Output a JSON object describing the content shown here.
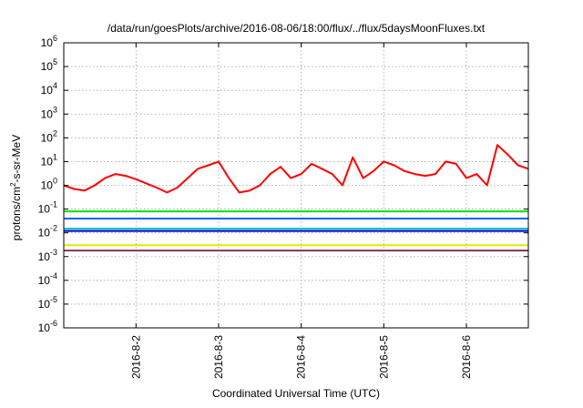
{
  "chart_data": {
    "type": "line",
    "title": "/data/run/goesPlots/archive/2016-08-06/18:00/flux/../flux/5daysMoonFluxes.txt",
    "xlabel": "Coordinated Universal Time (UTC)",
    "ylabel": "protons/cm²-s-sr-MeV",
    "ylabel_parts": {
      "pre": "protons/cm",
      "sup": "2",
      "post": "-s-sr-MeV"
    },
    "y_scale": "log",
    "ylim": [
      1e-06,
      1000000.0
    ],
    "xlim": [
      "2016-08-01T03:00",
      "2016-08-06T18:00"
    ],
    "grid": true,
    "yticks": [
      {
        "value": 1e-06,
        "base": "10",
        "exp": "-6"
      },
      {
        "value": 1e-05,
        "base": "10",
        "exp": "-5"
      },
      {
        "value": 0.0001,
        "base": "10",
        "exp": "-4"
      },
      {
        "value": 0.001,
        "base": "10",
        "exp": "-3"
      },
      {
        "value": 0.01,
        "base": "10",
        "exp": "-2"
      },
      {
        "value": 0.1,
        "base": "10",
        "exp": "-1"
      },
      {
        "value": 1.0,
        "base": "10",
        "exp": "0"
      },
      {
        "value": 10.0,
        "base": "10",
        "exp": "1"
      },
      {
        "value": 100.0,
        "base": "10",
        "exp": "2"
      },
      {
        "value": 1000.0,
        "base": "10",
        "exp": "3"
      },
      {
        "value": 10000.0,
        "base": "10",
        "exp": "4"
      },
      {
        "value": 100000.0,
        "base": "10",
        "exp": "5"
      },
      {
        "value": 1000000.0,
        "base": "10",
        "exp": "6"
      }
    ],
    "xticks": [
      {
        "label": "2016-8-2",
        "date": "2016-08-02T00:00"
      },
      {
        "label": "2016-8-3",
        "date": "2016-08-03T00:00"
      },
      {
        "label": "2016-8-4",
        "date": "2016-08-04T00:00"
      },
      {
        "label": "2016-8-5",
        "date": "2016-08-05T00:00"
      },
      {
        "label": "2016-8-6",
        "date": "2016-08-06T00:00"
      }
    ],
    "series": [
      {
        "color": "#ff0000",
        "x": [
          "2016-08-01T03:00",
          "2016-08-01T06:00",
          "2016-08-01T09:00",
          "2016-08-01T12:00",
          "2016-08-01T15:00",
          "2016-08-01T18:00",
          "2016-08-01T21:00",
          "2016-08-02T00:00",
          "2016-08-02T03:00",
          "2016-08-02T06:00",
          "2016-08-02T09:00",
          "2016-08-02T12:00",
          "2016-08-02T15:00",
          "2016-08-02T18:00",
          "2016-08-02T21:00",
          "2016-08-03T00:00",
          "2016-08-03T03:00",
          "2016-08-03T06:00",
          "2016-08-03T09:00",
          "2016-08-03T12:00",
          "2016-08-03T15:00",
          "2016-08-03T18:00",
          "2016-08-03T21:00",
          "2016-08-04T00:00",
          "2016-08-04T03:00",
          "2016-08-04T06:00",
          "2016-08-04T09:00",
          "2016-08-04T12:00",
          "2016-08-04T15:00",
          "2016-08-04T18:00",
          "2016-08-04T21:00",
          "2016-08-05T00:00",
          "2016-08-05T03:00",
          "2016-08-05T06:00",
          "2016-08-05T09:00",
          "2016-08-05T12:00",
          "2016-08-05T15:00",
          "2016-08-05T18:00",
          "2016-08-05T21:00",
          "2016-08-06T00:00",
          "2016-08-06T03:00",
          "2016-08-06T06:00",
          "2016-08-06T09:00",
          "2016-08-06T12:00",
          "2016-08-06T15:00",
          "2016-08-06T18:00"
        ],
        "y": [
          1.0,
          0.7,
          0.6,
          1.0,
          2.0,
          3.0,
          2.5,
          1.8,
          1.2,
          0.8,
          0.5,
          0.8,
          2.0,
          5.0,
          7.0,
          10.0,
          2.0,
          0.5,
          0.6,
          1.0,
          3.0,
          6.0,
          2.0,
          3.0,
          8.0,
          5.0,
          3.0,
          1.0,
          15.0,
          2.0,
          4.0,
          10.0,
          7.0,
          4.0,
          3.0,
          2.5,
          3.0,
          10.0,
          8.0,
          2.0,
          3.0,
          1.0,
          50.0,
          20.0,
          7.0,
          5.0
        ]
      },
      {
        "color": "#00e000",
        "x": [
          "2016-08-01T03:00",
          "2016-08-06T18:00"
        ],
        "y": [
          0.08,
          0.08
        ]
      },
      {
        "color": "#0060ff",
        "x": [
          "2016-08-01T03:00",
          "2016-08-06T18:00"
        ],
        "y": [
          0.04,
          0.04
        ]
      },
      {
        "color": "#00c0c0",
        "x": [
          "2016-08-01T03:00",
          "2016-08-06T18:00"
        ],
        "y": [
          0.015,
          0.015
        ]
      },
      {
        "color": "#0000d0",
        "x": [
          "2016-08-01T03:00",
          "2016-08-06T18:00"
        ],
        "y": [
          0.012,
          0.012
        ]
      },
      {
        "color": "#e8e800",
        "x": [
          "2016-08-01T03:00",
          "2016-08-06T18:00"
        ],
        "y": [
          0.003,
          0.003
        ]
      },
      {
        "color": "#883355",
        "x": [
          "2016-08-01T03:00",
          "2016-08-06T18:00"
        ],
        "y": [
          0.0018,
          0.0018
        ]
      }
    ]
  }
}
